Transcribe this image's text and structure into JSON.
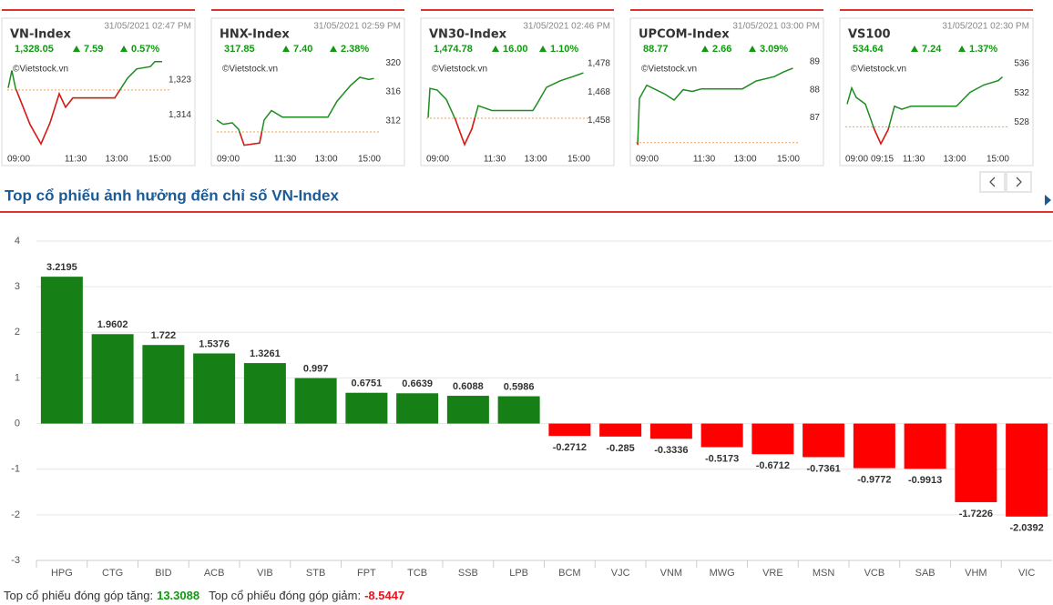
{
  "header": {
    "title": "Top cổ phiếu ảnh hưởng đến chỉ số VN-Index"
  },
  "footer": {
    "up_label": "Top cổ phiếu đóng góp tăng:",
    "up_value": "13.3088",
    "down_label": "Top cổ phiếu đóng góp giảm:",
    "down_value": "-8.5447"
  },
  "chart_data": [
    {
      "type": "line",
      "title": "VN-Index",
      "timestamp": "31/05/2021 02:47 PM",
      "price": "1,328.05",
      "change": "7.59",
      "change_pct": "0.57%",
      "source": "©Vietstock.vn",
      "x": [
        "09:02",
        "09:10",
        "09:18",
        "09:50",
        "10:14",
        "10:34",
        "10:54",
        "11:08",
        "11:24",
        "12:56",
        "13:24",
        "13:44",
        "14:14",
        "14:24",
        "14:40"
      ],
      "values": [
        1321,
        1325.5,
        1321,
        1311.5,
        1306.5,
        1312,
        1319.5,
        1316,
        1318.4,
        1318.4,
        1323.5,
        1325.9,
        1326.5,
        1327.8,
        1327.8
      ],
      "xlim": [
        "09:00",
        "15:00"
      ],
      "xticks": [
        "09:00",
        "11:30",
        "13:00",
        "15:00"
      ],
      "ylim": [
        1305.6,
        1328.2
      ],
      "yticks": [
        {
          "value": 1323,
          "label": "1,323"
        },
        {
          "value": 1314,
          "label": "1,314"
        }
      ],
      "reference": 1320.46,
      "color": "#1e8c1e",
      "below_color": "#e8141b",
      "reference_color": "#f0a050"
    },
    {
      "type": "line",
      "title": "HNX-Index",
      "timestamp": "31/05/2021 02:59 PM",
      "price": "317.85",
      "change": "7.40",
      "change_pct": "2.38%",
      "source": "©Vietstock.vn",
      "x": [
        "09:00",
        "09:14",
        "09:34",
        "09:48",
        "10:00",
        "10:34",
        "10:44",
        "11:00",
        "11:24",
        "13:04",
        "13:24",
        "13:54",
        "14:14",
        "14:34",
        "14:45"
      ],
      "values": [
        312.1,
        311.5,
        311.7,
        310.8,
        308.6,
        308.9,
        312.1,
        313.4,
        312.5,
        312.5,
        314.7,
        316.9,
        318,
        317.7,
        317.85
      ],
      "xlim": [
        "09:00",
        "15:00"
      ],
      "xticks": [
        "09:00",
        "11:30",
        "13:00",
        "15:00"
      ],
      "ylim": [
        308.3,
        320.4
      ],
      "yticks": [
        320,
        316,
        312
      ],
      "reference": 310.45,
      "color": "#1e8c1e",
      "below_color": "#e8141b",
      "reference_color": "#f0a050"
    },
    {
      "type": "line",
      "title": "VN30-Index",
      "timestamp": "31/05/2021 02:46 PM",
      "price": "1,474.78",
      "change": "16.00",
      "change_pct": "1.10%",
      "source": "©Vietstock.vn",
      "x": [
        "09:04",
        "09:08",
        "09:24",
        "09:44",
        "10:04",
        "10:24",
        "10:40",
        "10:54",
        "11:24",
        "12:54",
        "13:04",
        "13:24",
        "13:54",
        "14:24",
        "14:45"
      ],
      "values": [
        1459,
        1469.3,
        1468.7,
        1465.4,
        1458.3,
        1449.5,
        1455,
        1463.2,
        1461.5,
        1461.5,
        1464.1,
        1469.7,
        1472,
        1473.6,
        1474.78
      ],
      "xlim": [
        "09:00",
        "15:00"
      ],
      "xticks": [
        "09:00",
        "11:30",
        "13:00",
        "15:00"
      ],
      "ylim": [
        1448.5,
        1479.3
      ],
      "yticks": [
        {
          "value": 1478,
          "label": "1,478"
        },
        {
          "value": 1468,
          "label": "1,468"
        },
        {
          "value": 1458,
          "label": "1,458"
        }
      ],
      "reference": 1458.78,
      "color": "#1e8c1e",
      "below_color": "#e8141b",
      "reference_color": "#f0a050"
    },
    {
      "type": "line",
      "title": "UPCOM-Index",
      "timestamp": "31/05/2021 03:00 PM",
      "price": "88.77",
      "change": "2.66",
      "change_pct": "3.09%",
      "source": "©Vietstock.vn",
      "x": [
        "09:04",
        "09:08",
        "09:24",
        "09:44",
        "10:04",
        "10:24",
        "10:44",
        "11:04",
        "11:24",
        "12:54",
        "13:24",
        "14:04",
        "14:24",
        "14:45"
      ],
      "values": [
        86.03,
        87.69,
        88.16,
        88,
        87.84,
        87.63,
        88,
        87.94,
        88.03,
        88.03,
        88.31,
        88.47,
        88.63,
        88.77
      ],
      "xlim": [
        "09:00",
        "15:00"
      ],
      "xticks": [
        "09:00",
        "11:30",
        "13:00",
        "15:00"
      ],
      "ylim": [
        85.94,
        89.06
      ],
      "yticks": [
        89,
        88,
        87
      ],
      "reference": 86.11,
      "color": "#1e8c1e",
      "below_color": "#e8141b",
      "reference_color": "#f0a050"
    },
    {
      "type": "line",
      "title": "VS100",
      "timestamp": "31/05/2021 02:30 PM",
      "price": "534.64",
      "change": "7.24",
      "change_pct": "1.37%",
      "source": "©Vietstock.vn",
      "x": [
        "09:04",
        "09:14",
        "09:24",
        "09:44",
        "10:04",
        "10:18",
        "10:34",
        "10:48",
        "11:04",
        "11:24",
        "13:04",
        "13:34",
        "14:04",
        "14:36",
        "14:45"
      ],
      "values": [
        530.5,
        532.7,
        531.4,
        530.5,
        527,
        525.1,
        527,
        530.2,
        529.8,
        530.2,
        530.2,
        532.1,
        533.1,
        533.7,
        534.2
      ],
      "xlim": [
        "09:00",
        "15:00"
      ],
      "xticks": [
        "09:00",
        "09:15",
        "11:30",
        "13:00",
        "15:00"
      ],
      "ylim": [
        524.6,
        536.5
      ],
      "yticks": [
        536,
        532,
        528
      ],
      "reference": 527.4,
      "color": "#1e8c1e",
      "below_color": "#e8141b",
      "reference_color": "#f0a050"
    },
    {
      "type": "bar",
      "categories": [
        "HPG",
        "CTG",
        "BID",
        "ACB",
        "VIB",
        "STB",
        "FPT",
        "TCB",
        "SSB",
        "LPB",
        "BCM",
        "VJC",
        "VNM",
        "MWG",
        "VRE",
        "MSN",
        "VCB",
        "SAB",
        "VHM",
        "VIC"
      ],
      "values": [
        3.2195,
        1.9602,
        1.722,
        1.5376,
        1.3261,
        0.997,
        0.6751,
        0.6639,
        0.6088,
        0.5986,
        -0.2712,
        -0.285,
        -0.3336,
        -0.5173,
        -0.6712,
        -0.7361,
        -0.9772,
        -0.9913,
        -1.7226,
        -2.0392
      ],
      "ylim": [
        -3,
        4
      ],
      "yticks": [
        -3,
        -2,
        -1,
        0,
        1,
        2,
        3,
        4
      ],
      "grid": true,
      "positive_color": "#168016",
      "negative_color": "#ff0000"
    }
  ]
}
